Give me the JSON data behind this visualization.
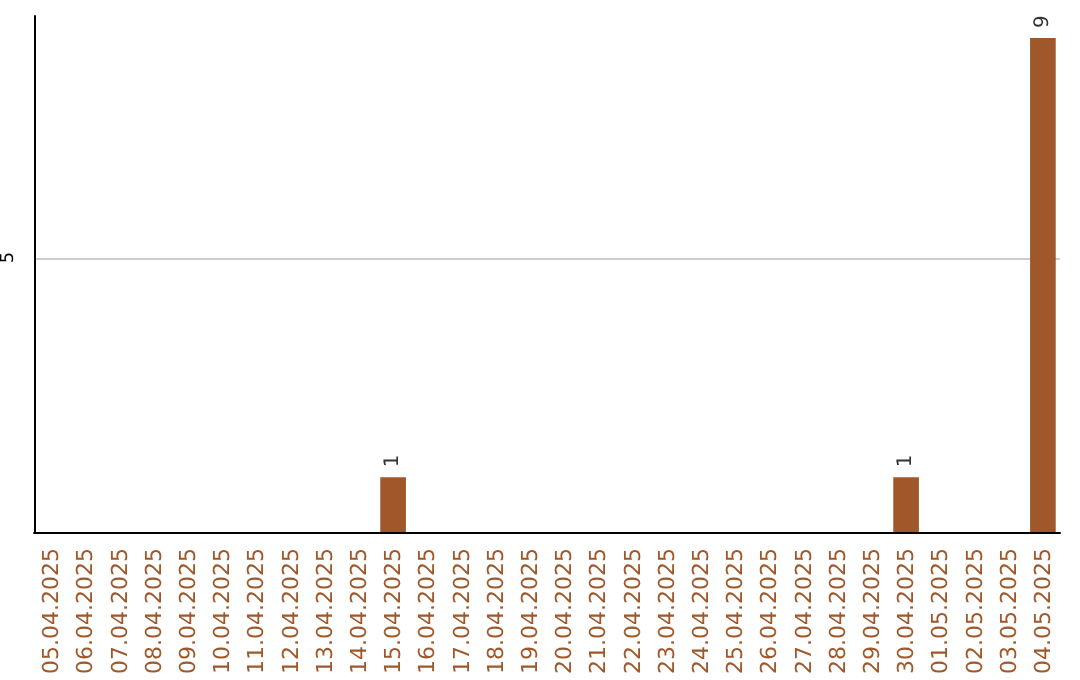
{
  "chart_data": {
    "type": "bar",
    "categories": [
      "05.04.2025",
      "06.04.2025",
      "07.04.2025",
      "08.04.2025",
      "09.04.2025",
      "10.04.2025",
      "11.04.2025",
      "12.04.2025",
      "13.04.2025",
      "14.04.2025",
      "15.04.2025",
      "16.04.2025",
      "17.04.2025",
      "18.04.2025",
      "19.04.2025",
      "20.04.2025",
      "21.04.2025",
      "22.04.2025",
      "23.04.2025",
      "24.04.2025",
      "25.04.2025",
      "26.04.2025",
      "27.04.2025",
      "28.04.2025",
      "29.04.2025",
      "30.04.2025",
      "01.05.2025",
      "02.05.2025",
      "03.05.2025",
      "04.05.2025"
    ],
    "values": [
      null,
      null,
      null,
      null,
      null,
      null,
      null,
      null,
      null,
      null,
      1,
      null,
      null,
      null,
      null,
      null,
      null,
      null,
      null,
      null,
      null,
      null,
      null,
      null,
      null,
      1,
      null,
      null,
      null,
      9
    ],
    "color": "#a0582a",
    "ylim": [
      0,
      9.4
    ],
    "yticks": [
      5
    ],
    "grid": "y",
    "data_labels": true
  }
}
